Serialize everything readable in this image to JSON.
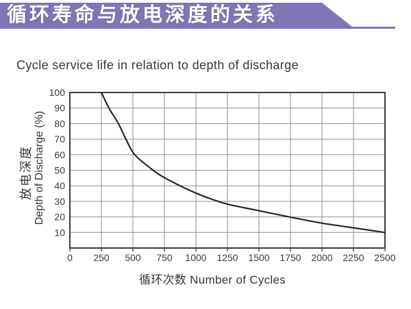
{
  "banner": {
    "title": "循环寿命与放电深度的关系",
    "bg_color": "#7E76B5",
    "text_color": "#FFFFFF"
  },
  "page_title": "Cycle service life in relation to depth of discharge",
  "chart_data": {
    "type": "line",
    "title": "Cycle service life in relation to depth of discharge",
    "xlabel": "循环次数 Number of Cycles",
    "ylabel_cn": "放电深度",
    "ylabel_en": "Depth of Discharge (%)",
    "xlim": [
      0,
      2500
    ],
    "ylim": [
      0,
      100
    ],
    "x_ticks": [
      0,
      250,
      500,
      750,
      1000,
      1250,
      1500,
      1750,
      2000,
      2250,
      2500
    ],
    "y_ticks": [
      10,
      20,
      30,
      40,
      50,
      60,
      70,
      80,
      90,
      100
    ],
    "grid": true,
    "legend": "none",
    "series": [
      {
        "name": "cycle-life-vs-depth-of-discharge",
        "color": "#2B2527",
        "points": [
          [
            250,
            100
          ],
          [
            310,
            90
          ],
          [
            385,
            80
          ],
          [
            445,
            70
          ],
          [
            515,
            60
          ],
          [
            660,
            50
          ],
          [
            755,
            45
          ],
          [
            875,
            40
          ],
          [
            1010,
            35
          ],
          [
            1140,
            31
          ],
          [
            1260,
            28
          ],
          [
            1500,
            24
          ],
          [
            1740,
            20
          ],
          [
            2000,
            16
          ],
          [
            2250,
            13
          ],
          [
            2500,
            10
          ]
        ]
      }
    ],
    "colors": {
      "grid": "#8B8B8B",
      "axis": "#3F3B3C",
      "tick_text": "#3C3737"
    }
  }
}
